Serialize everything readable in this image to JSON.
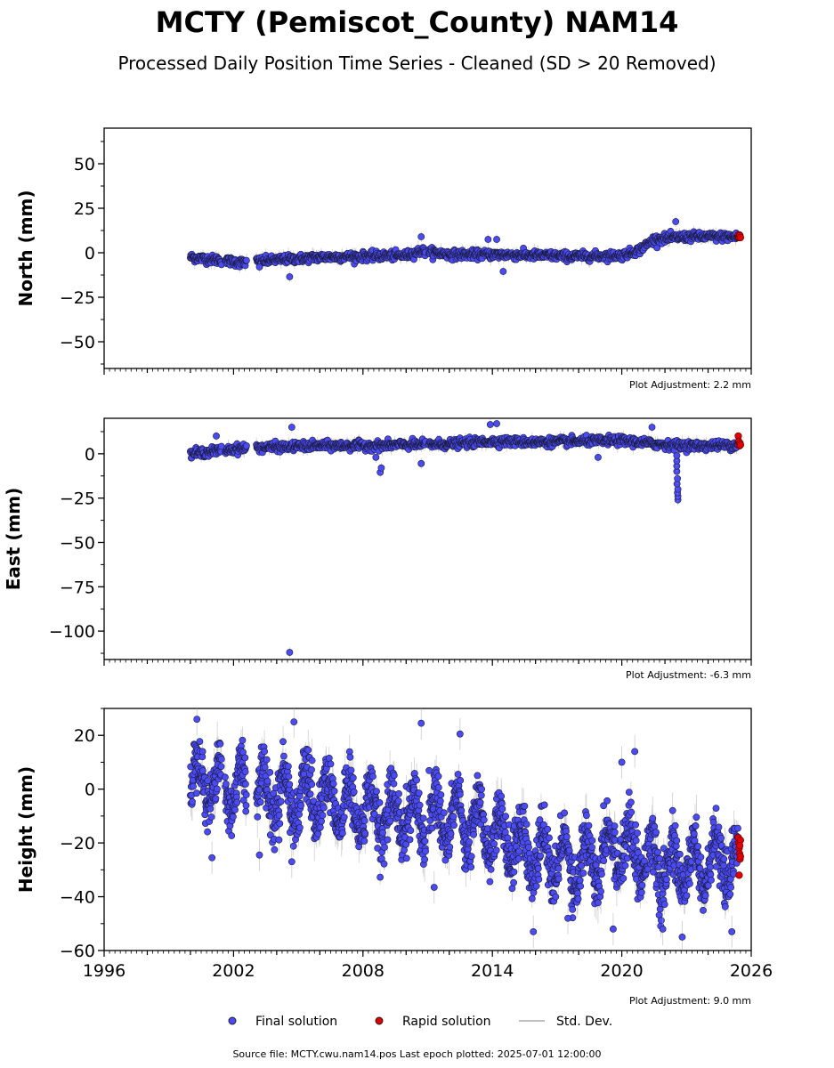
{
  "title": "MCTY (Pemiscot_County) NAM14",
  "subtitle": "Processed Daily Position Time Series - Cleaned (SD > 20 Removed)",
  "colors": {
    "final": "#4b4bf5",
    "rapid": "#e00000",
    "stddev": "#a9a9a9"
  },
  "legend": [
    {
      "label": "Final solution",
      "marker": "dot",
      "color": "#4b4bf5"
    },
    {
      "label": "Rapid solution",
      "marker": "dot",
      "color": "#e00000"
    },
    {
      "label": "Std. Dev.",
      "marker": "line",
      "color": "#a9a9a9"
    }
  ],
  "source_note": "Source file: MCTY.cwu.nam14.pos  Last epoch plotted: 2025-07-01 12:00:00",
  "x_axis": {
    "range": [
      1996,
      2026
    ],
    "ticks": [
      "1996",
      "2002",
      "2008",
      "2014",
      "2020",
      "2026"
    ],
    "minor_step_years": 0.25
  },
  "chart_data": [
    {
      "type": "scatter",
      "ylabel": "North (mm)",
      "ylim": [
        -65,
        70
      ],
      "yticks": [
        50,
        25,
        0,
        -25,
        -50
      ],
      "adjustment": "Plot Adjustment: 2.2 mm",
      "trend_points": [
        [
          2000.0,
          -2.5
        ],
        [
          2002.0,
          -5
        ],
        [
          2002.4,
          -5.5
        ],
        [
          2004.0,
          -4
        ],
        [
          2006.0,
          -2.5
        ],
        [
          2008.0,
          -2
        ],
        [
          2010.0,
          -1.5
        ],
        [
          2010.7,
          1
        ],
        [
          2012.0,
          -1
        ],
        [
          2014.0,
          -1
        ],
        [
          2016.0,
          -1.5
        ],
        [
          2018.0,
          -2
        ],
        [
          2020.0,
          -1.5
        ],
        [
          2020.8,
          1.5
        ],
        [
          2021.5,
          7.5
        ],
        [
          2023.0,
          9
        ],
        [
          2025.0,
          9
        ],
        [
          2025.5,
          9
        ]
      ],
      "outliers": [
        [
          2004.6,
          -13.5
        ],
        [
          2010.7,
          9
        ],
        [
          2013.8,
          7.5
        ],
        [
          2014.2,
          7.5
        ],
        [
          2014.5,
          -10.5
        ],
        [
          2022.5,
          17.5
        ],
        [
          2003.2,
          -8
        ]
      ],
      "rapid": [
        [
          2025.4,
          10
        ],
        [
          2025.42,
          9
        ],
        [
          2025.44,
          8.5
        ],
        [
          2025.46,
          10
        ],
        [
          2025.48,
          9.5
        ],
        [
          2025.5,
          8.5
        ]
      ]
    },
    {
      "type": "scatter",
      "ylabel": "East (mm)",
      "ylim": [
        -116,
        20
      ],
      "yticks": [
        0,
        -25,
        -50,
        -75,
        -100
      ],
      "adjustment": "Plot Adjustment: -6.3 mm",
      "trend_points": [
        [
          2000.0,
          0
        ],
        [
          2001.5,
          2
        ],
        [
          2002.4,
          3
        ],
        [
          2003.0,
          3.5
        ],
        [
          2006.0,
          4.5
        ],
        [
          2008.0,
          4.5
        ],
        [
          2010.0,
          5
        ],
        [
          2012.0,
          5.5
        ],
        [
          2014.0,
          7
        ],
        [
          2016.0,
          6.5
        ],
        [
          2018.0,
          7
        ],
        [
          2020.0,
          7.5
        ],
        [
          2022.0,
          5
        ],
        [
          2023.5,
          4.5
        ],
        [
          2025.5,
          5
        ]
      ],
      "outliers": [
        [
          2004.6,
          -112
        ],
        [
          2004.7,
          15
        ],
        [
          2001.2,
          10
        ],
        [
          2010.7,
          -5.5
        ],
        [
          2008.8,
          -10.5
        ],
        [
          2008.85,
          -8
        ],
        [
          2013.9,
          16.5
        ],
        [
          2014.2,
          17
        ],
        [
          2018.9,
          -2
        ],
        [
          2021.4,
          15
        ],
        [
          2008.6,
          -2
        ],
        [
          2022.6,
          -26
        ],
        [
          2022.6,
          -24
        ],
        [
          2022.58,
          -22
        ],
        [
          2022.6,
          -20
        ],
        [
          2022.56,
          -17
        ],
        [
          2022.58,
          -14
        ],
        [
          2022.55,
          -10
        ],
        [
          2022.55,
          -7
        ],
        [
          2022.55,
          -4
        ],
        [
          2022.55,
          -1
        ]
      ],
      "rapid": [
        [
          2025.4,
          10
        ],
        [
          2025.42,
          7
        ],
        [
          2025.44,
          5.5
        ],
        [
          2025.46,
          4.5
        ],
        [
          2025.48,
          6
        ],
        [
          2025.5,
          5
        ]
      ]
    },
    {
      "type": "scatter",
      "ylabel": "Height (mm)",
      "ylim": [
        -60,
        30
      ],
      "yticks": [
        20,
        0,
        -20,
        -40,
        -60
      ],
      "adjustment": "Plot Adjustment: 9.0 mm",
      "trend_points": [
        [
          2000.0,
          5
        ],
        [
          2002.0,
          0
        ],
        [
          2004.0,
          -2
        ],
        [
          2006.0,
          -4
        ],
        [
          2008.0,
          -8
        ],
        [
          2010.0,
          -10
        ],
        [
          2012.0,
          -10
        ],
        [
          2014.0,
          -15
        ],
        [
          2016.0,
          -25
        ],
        [
          2018.0,
          -28
        ],
        [
          2020.0,
          -20
        ],
        [
          2022.0,
          -30
        ],
        [
          2024.0,
          -28
        ],
        [
          2025.5,
          -27
        ]
      ],
      "seasonal_amplitude": 9,
      "outliers": [
        [
          2000.3,
          26
        ],
        [
          2004.8,
          25
        ],
        [
          2010.7,
          24.5
        ],
        [
          2012.5,
          20.5
        ],
        [
          2015.9,
          -53
        ],
        [
          2019.6,
          -52
        ],
        [
          2022.8,
          -55
        ],
        [
          2021.9,
          -52
        ],
        [
          2025.1,
          -53
        ],
        [
          2001.0,
          -25.5
        ],
        [
          2003.2,
          -24.5
        ],
        [
          2011.3,
          -36.5
        ],
        [
          2020.0,
          10
        ],
        [
          2020.6,
          14
        ],
        [
          2017.5,
          -48
        ],
        [
          2004.7,
          -27
        ]
      ],
      "rapid": [
        [
          2025.4,
          -18
        ],
        [
          2025.42,
          -20
        ],
        [
          2025.44,
          -22
        ],
        [
          2025.46,
          -24
        ],
        [
          2025.48,
          -26
        ],
        [
          2025.5,
          -19
        ],
        [
          2025.44,
          -32
        ],
        [
          2025.47,
          -21
        ],
        [
          2025.5,
          -25
        ]
      ]
    }
  ]
}
